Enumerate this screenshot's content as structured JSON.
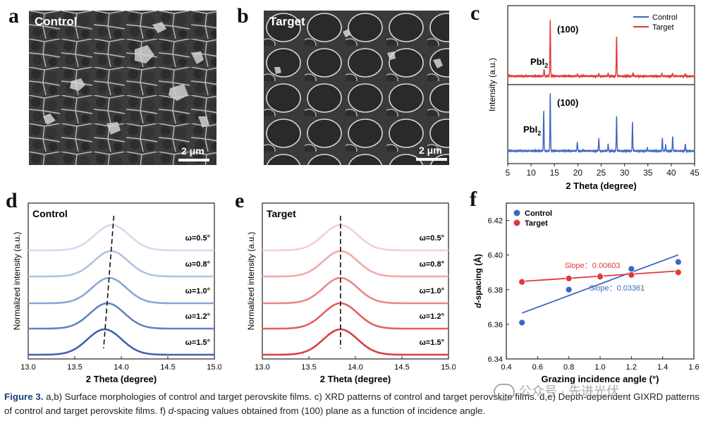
{
  "panels": {
    "a": {
      "letter": "a",
      "title": "Control",
      "scale": "2 μm"
    },
    "b": {
      "letter": "b",
      "title": "Target",
      "scale": "2 μm"
    },
    "c": {
      "letter": "c"
    },
    "d": {
      "letter": "d",
      "title": "Control"
    },
    "e": {
      "letter": "e",
      "title": "Target"
    },
    "f": {
      "letter": "f"
    }
  },
  "caption": {
    "label": "Figure 3.",
    "text_1": "a,b) Surface morphologies of control and target perovskite films. c) XRD patterns of control and target perovskite films. d,e) Depth-dependent GIXRD patterns of control and target perovskite films. f) ",
    "italic": "d",
    "text_2": "-spacing values obtained from (100) plane as a function of incidence angle."
  },
  "watermark": "公众号 · 先进光伏",
  "chart_data": [
    {
      "id": "c",
      "type": "line",
      "xlabel": "2 Theta (degree)",
      "ylabel": "Intensity (a.u.)",
      "xlim": [
        5,
        45
      ],
      "xticks": [
        5,
        10,
        15,
        20,
        25,
        30,
        35,
        40,
        45
      ],
      "legend": "top-right",
      "series": [
        {
          "name": "Control",
          "color": "#3b66c4",
          "peaks": [
            [
              12.7,
              0.7
            ],
            [
              14.1,
              1.0
            ],
            [
              19.9,
              0.15
            ],
            [
              24.5,
              0.22
            ],
            [
              26.5,
              0.12
            ],
            [
              28.3,
              0.6
            ],
            [
              31.7,
              0.5
            ],
            [
              34.9,
              0.06
            ],
            [
              38.1,
              0.22
            ],
            [
              38.8,
              0.1
            ],
            [
              40.3,
              0.25
            ],
            [
              43.0,
              0.12
            ]
          ]
        },
        {
          "name": "Target",
          "color": "#e0383b",
          "peaks": [
            [
              12.8,
              0.12
            ],
            [
              14.1,
              1.0
            ],
            [
              19.9,
              0.04
            ],
            [
              24.5,
              0.05
            ],
            [
              26.5,
              0.04
            ],
            [
              28.3,
              0.7
            ],
            [
              31.8,
              0.05
            ],
            [
              38.0,
              0.05
            ],
            [
              40.3,
              0.05
            ],
            [
              43.0,
              0.04
            ]
          ]
        }
      ],
      "annotations": [
        "(100)",
        "(100)",
        "PbI",
        "PbI"
      ]
    },
    {
      "id": "d",
      "type": "line",
      "xlabel": "2 Theta (degree)",
      "ylabel": "Normalized intensity (a.u.)",
      "xlim": [
        13.0,
        15.0
      ],
      "xticks": [
        "13.0",
        "13.5",
        "14.0",
        "14.5",
        "15.0"
      ],
      "series": [
        {
          "name": "ω=0.5°",
          "center": 13.9,
          "color": "#cfdcef"
        },
        {
          "name": "ω=0.8°",
          "center": 13.89,
          "color": "#aec2e2"
        },
        {
          "name": "ω=1.0°",
          "center": 13.87,
          "color": "#8aa6d3"
        },
        {
          "name": "ω=1.2°",
          "center": 13.85,
          "color": "#6284c1"
        },
        {
          "name": "ω=1.5°",
          "center": 13.82,
          "color": "#3f62ab"
        }
      ]
    },
    {
      "id": "e",
      "type": "line",
      "xlabel": "2 Theta (degree)",
      "ylabel": "Normalized intensity (a.u.)",
      "xlim": [
        13.0,
        15.0
      ],
      "xticks": [
        "13.0",
        "13.5",
        "14.0",
        "14.5",
        "15.0"
      ],
      "series": [
        {
          "name": "ω=0.5°",
          "center": 13.84,
          "color": "#f6cfcf"
        },
        {
          "name": "ω=0.8°",
          "center": 13.84,
          "color": "#f0aaab"
        },
        {
          "name": "ω=1.0°",
          "center": 13.84,
          "color": "#e98789"
        },
        {
          "name": "ω=1.2°",
          "center": 13.84,
          "color": "#e1605f"
        },
        {
          "name": "ω=1.5°",
          "center": 13.84,
          "color": "#d93f40"
        }
      ]
    },
    {
      "id": "f",
      "type": "scatter",
      "xlabel": "Grazing incidence angle (°)",
      "ylabel": "-spacing (Å)",
      "ylabel_italic": "d",
      "xlim": [
        0.4,
        1.6
      ],
      "ylim": [
        6.34,
        6.43
      ],
      "xticks": [
        "0.4",
        "0.6",
        "0.8",
        "1.0",
        "1.2",
        "1.4",
        "1.6"
      ],
      "yticks": [
        "6.34",
        "6.36",
        "6.38",
        "6.40",
        "6.42"
      ],
      "legend": "top-left",
      "x": [
        0.5,
        0.8,
        1.0,
        1.2,
        1.5
      ],
      "series": [
        {
          "name": "Control",
          "color": "#3b66c4",
          "values": [
            6.361,
            6.38,
            6.388,
            6.392,
            6.396
          ],
          "fit": [
            [
              0.5,
              6.3665
            ],
            [
              1.5,
              6.4001
            ]
          ],
          "slope_label": "Slope：0.03361"
        },
        {
          "name": "Target",
          "color": "#e0383b",
          "values": [
            6.3845,
            6.3865,
            6.3875,
            6.3885,
            6.39
          ],
          "fit": [
            [
              0.5,
              6.3848
            ],
            [
              1.5,
              6.3908
            ]
          ],
          "slope_label": "Slope：0.00603"
        }
      ]
    }
  ]
}
